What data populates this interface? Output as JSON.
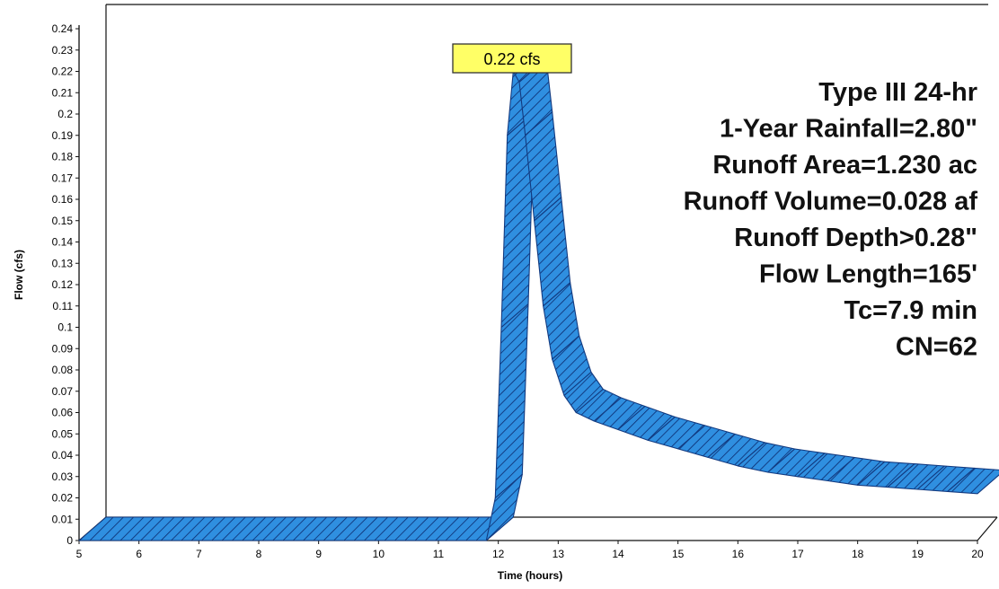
{
  "chart_data": {
    "type": "area",
    "xlabel": "Time  (hours)",
    "ylabel": "Flow  (cfs)",
    "xlim": [
      5,
      20
    ],
    "ylim": [
      0,
      0.24
    ],
    "x_ticks": [
      5,
      6,
      7,
      8,
      9,
      10,
      11,
      12,
      13,
      14,
      15,
      16,
      17,
      18,
      19,
      20
    ],
    "y_ticks": [
      "0",
      "0.01",
      "0.02",
      "0.03",
      "0.04",
      "0.05",
      "0.06",
      "0.07",
      "0.08",
      "0.09",
      "0.1",
      "0.11",
      "0.12",
      "0.13",
      "0.14",
      "0.15",
      "0.16",
      "0.17",
      "0.18",
      "0.19",
      "0.2",
      "0.21",
      "0.22",
      "0.23",
      "0.24"
    ],
    "grid": false,
    "series": [
      {
        "x": [
          5,
          11.8,
          11.95,
          12.05,
          12.15,
          12.25,
          12.35,
          12.45,
          12.6,
          12.75,
          12.9,
          13.1,
          13.3,
          13.6,
          14,
          14.5,
          15,
          15.5,
          16,
          16.5,
          17,
          17.5,
          18,
          18.5,
          19,
          19.5,
          20
        ],
        "y": [
          0,
          0,
          0.02,
          0.1,
          0.19,
          0.22,
          0.215,
          0.19,
          0.15,
          0.11,
          0.085,
          0.068,
          0.06,
          0.056,
          0.052,
          0.047,
          0.043,
          0.039,
          0.035,
          0.032,
          0.03,
          0.028,
          0.026,
          0.025,
          0.024,
          0.023,
          0.022
        ],
        "color": "#2f8fe0"
      }
    ],
    "peak_label": "0.22 cfs",
    "info_lines": [
      "Type III 24-hr",
      "1-Year Rainfall=2.80\"",
      "Runoff Area=1.230 ac",
      "Runoff Volume=0.028 af",
      "Runoff Depth>0.28\"",
      "Flow Length=165'",
      "Tc=7.9 min",
      "CN=62"
    ],
    "colors": {
      "fill": "#2f8fe0",
      "hatch": "#0b2a6e",
      "peak_box": "#ffff66"
    }
  }
}
